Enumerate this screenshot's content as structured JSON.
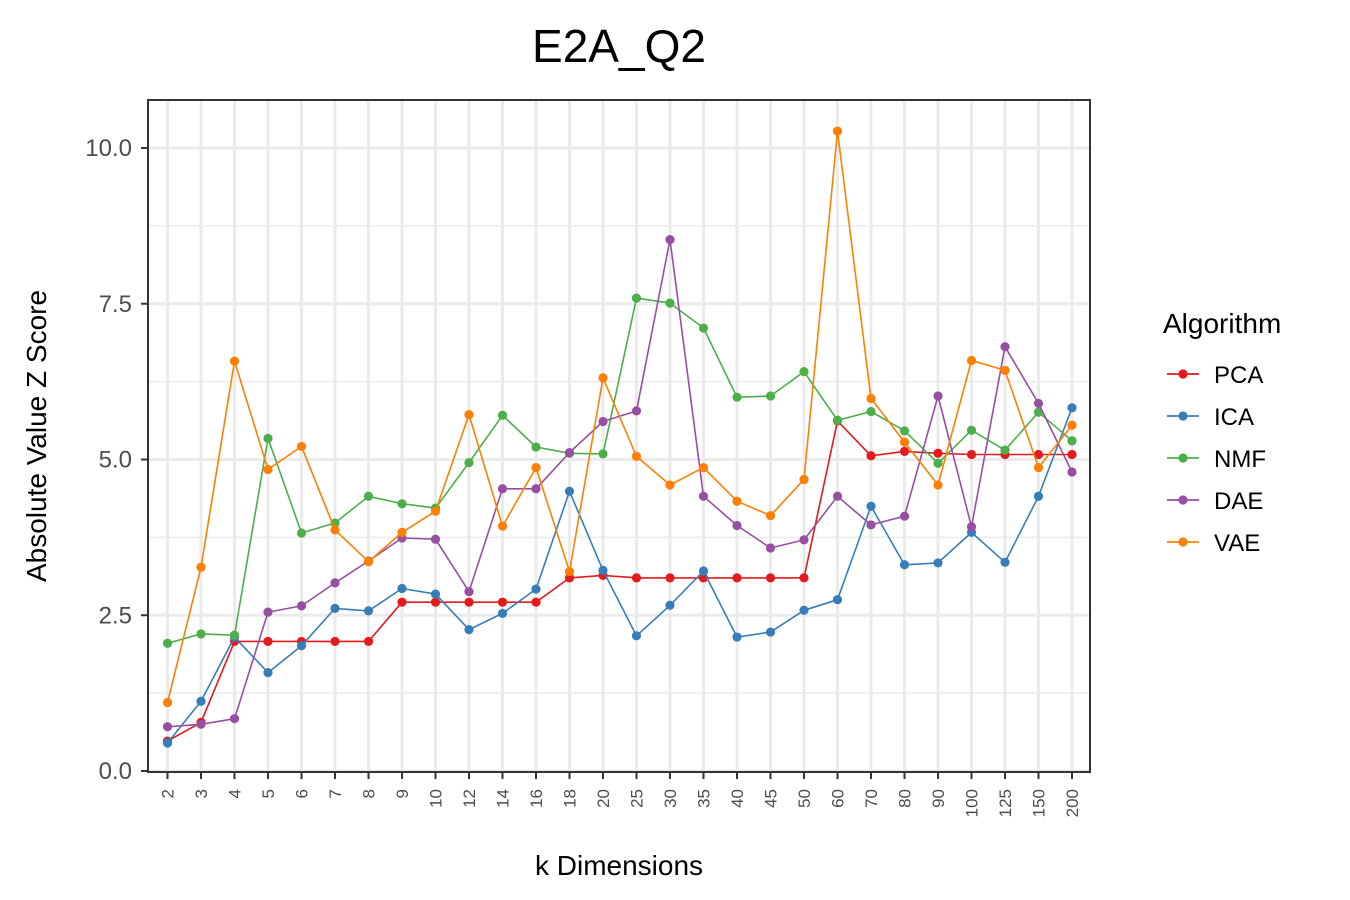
{
  "chart_data": {
    "type": "line",
    "title": "E2A_Q2",
    "xlabel": "k Dimensions",
    "ylabel": "Absolute Value Z Score",
    "ylim": [
      0,
      10.75
    ],
    "yticks": [
      0.0,
      2.5,
      5.0,
      7.5,
      10.0
    ],
    "ytick_labels": [
      "0.0",
      "2.5",
      "5.0",
      "7.5",
      "10.0"
    ],
    "grid": true,
    "legend_title": "Algorithm",
    "legend_position": "right",
    "categories": [
      "2",
      "3",
      "4",
      "5",
      "6",
      "7",
      "8",
      "9",
      "10",
      "12",
      "14",
      "16",
      "18",
      "20",
      "25",
      "30",
      "35",
      "40",
      "45",
      "50",
      "60",
      "70",
      "80",
      "90",
      "100",
      "125",
      "150",
      "200"
    ],
    "series": [
      {
        "name": "PCA",
        "color": "#E41A1C",
        "values": [
          0.48,
          0.78,
          2.08,
          2.08,
          2.08,
          2.08,
          2.08,
          2.71,
          2.71,
          2.71,
          2.71,
          2.71,
          3.1,
          3.14,
          3.1,
          3.1,
          3.1,
          3.1,
          3.1,
          3.1,
          5.62,
          5.06,
          5.13,
          5.1,
          5.08,
          5.08,
          5.08,
          5.08
        ]
      },
      {
        "name": "ICA",
        "color": "#377EB8",
        "values": [
          0.45,
          1.12,
          2.15,
          1.58,
          2.01,
          2.61,
          2.57,
          2.93,
          2.84,
          2.27,
          2.53,
          2.92,
          4.49,
          3.22,
          2.17,
          2.66,
          3.21,
          2.15,
          2.23,
          2.58,
          2.75,
          4.25,
          3.31,
          3.34,
          3.83,
          3.35,
          4.41,
          5.83
        ]
      },
      {
        "name": "NMF",
        "color": "#4DAF4A",
        "values": [
          2.05,
          2.2,
          2.18,
          5.34,
          3.82,
          3.98,
          4.41,
          4.29,
          4.22,
          4.95,
          5.71,
          5.2,
          5.1,
          5.09,
          7.59,
          7.51,
          7.11,
          6.0,
          6.02,
          6.41,
          5.63,
          5.77,
          5.46,
          4.94,
          5.47,
          5.15,
          5.76,
          5.3
        ]
      },
      {
        "name": "DAE",
        "color": "#984EA3",
        "values": [
          0.71,
          0.75,
          0.84,
          2.55,
          2.65,
          3.02,
          3.37,
          3.74,
          3.72,
          2.88,
          4.53,
          4.53,
          5.11,
          5.61,
          5.78,
          8.53,
          4.41,
          3.94,
          3.58,
          3.71,
          4.41,
          3.95,
          4.09,
          6.02,
          3.92,
          6.81,
          5.9,
          4.8
        ]
      },
      {
        "name": "VAE",
        "color": "#FF7F00",
        "values": [
          1.1,
          3.27,
          6.58,
          4.84,
          5.21,
          3.87,
          3.36,
          3.83,
          4.17,
          5.72,
          3.93,
          4.87,
          3.2,
          6.31,
          5.05,
          4.59,
          4.87,
          4.33,
          4.1,
          4.68,
          10.27,
          5.98,
          5.28,
          4.59,
          6.59,
          6.43,
          4.87,
          5.55
        ]
      }
    ]
  }
}
